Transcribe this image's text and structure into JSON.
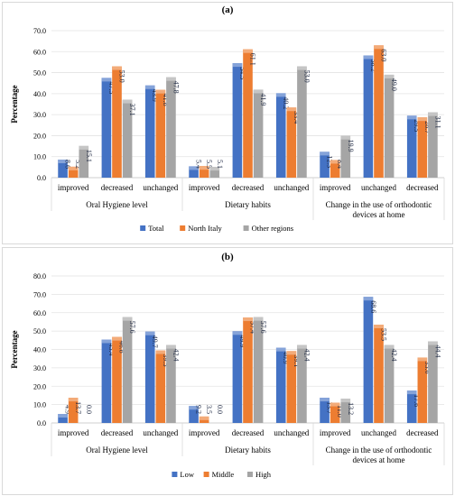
{
  "chart_data": [
    {
      "panel": "(a)",
      "type": "bar",
      "ylabel": "Percentage",
      "ylim": [
        0,
        70
      ],
      "yticks": [
        "0.0",
        "10.0",
        "20.0",
        "30.0",
        "40.0",
        "50.0",
        "60.0",
        "70.0"
      ],
      "grid": true,
      "legend": "bottom",
      "categories": [
        "improved",
        "decreased",
        "unchanged",
        "improved",
        "decreased",
        "unchanged",
        "improved",
        "unchanged",
        "decreased"
      ],
      "groups": [
        {
          "label": "Oral Hygiene level",
          "lines": [
            "Oral Hygiene level"
          ],
          "span": [
            0,
            2
          ]
        },
        {
          "label": "Dietary habits",
          "lines": [
            "Dietary habits"
          ],
          "span": [
            3,
            5
          ]
        },
        {
          "label": "Change in the use of orthodontic devices at home",
          "lines": [
            "Change in the use of orthodontic",
            "devices at home"
          ],
          "span": [
            6,
            8
          ]
        }
      ],
      "series": [
        {
          "name": "Total",
          "color": "#4472c4",
          "values": [
            8.6,
            47.5,
            43.9,
            5.4,
            54.5,
            40.2,
            12.3,
            58.2,
            29.5
          ],
          "labels": [
            "8.6",
            "47.5",
            "43.9",
            "5.4",
            "54.5",
            "40.2",
            "12.3",
            "58.2",
            "29.5"
          ]
        },
        {
          "name": "North Italy",
          "color": "#ed7d31",
          "values": [
            5.2,
            53.0,
            41.8,
            5.5,
            61.1,
            33.4,
            8.4,
            63.0,
            28.7
          ],
          "labels": [
            "5.2",
            "53.0",
            "41.8",
            "5.5",
            "61.1",
            "33.4",
            "8.4",
            "63.0",
            "28.7"
          ]
        },
        {
          "name": "Other regions",
          "color": "#a5a5a5",
          "values": [
            15.1,
            37.1,
            47.8,
            5.1,
            41.9,
            53.0,
            19.9,
            49.0,
            31.1
          ],
          "labels": [
            "15.1",
            "37.1",
            "47.8",
            "5.1",
            "41.9",
            "53.0",
            "19.9",
            "49.0",
            "31.1"
          ]
        }
      ]
    },
    {
      "panel": "(b)",
      "type": "bar",
      "ylabel": "Percentage",
      "ylim": [
        0,
        80
      ],
      "yticks": [
        "0.0",
        "10.0",
        "20.0",
        "30.0",
        "40.0",
        "50.0",
        "60.0",
        "70.0",
        "80.0"
      ],
      "grid": true,
      "legend": "bottom",
      "categories": [
        "improved",
        "decreased",
        "unchanged",
        "improved",
        "decreased",
        "unchanged",
        "improved",
        "unchanged",
        "decreased"
      ],
      "groups": [
        {
          "label": "Oral Hygiene level",
          "lines": [
            "Oral Hygiene level"
          ],
          "span": [
            0,
            2
          ]
        },
        {
          "label": "Dietary habits",
          "lines": [
            "Dietary habits"
          ],
          "span": [
            3,
            5
          ]
        },
        {
          "label": "Change in the use of orthodontic devices at home",
          "lines": [
            "Change in the use of orthodontic",
            "devices at home"
          ],
          "span": [
            6,
            8
          ]
        }
      ],
      "series": [
        {
          "name": "Low",
          "color": "#4472c4",
          "values": [
            4.9,
            45.4,
            49.7,
            9.2,
            49.9,
            40.9,
            13.7,
            68.6,
            17.6
          ],
          "labels": [
            "4.9",
            "45.4",
            "49.7",
            "9.2",
            "49.9",
            "40.9",
            "13.7",
            "68.6",
            "17.6"
          ]
        },
        {
          "name": "Middle",
          "color": "#ed7d31",
          "values": [
            13.7,
            46.8,
            39.5,
            3.5,
            57.4,
            39.1,
            11.0,
            53.5,
            35.6
          ],
          "labels": [
            "13.7",
            "46.8",
            "39.5",
            "3.5",
            "57.4",
            "39.1",
            "11.0",
            "53.5",
            "35.6"
          ]
        },
        {
          "name": "High",
          "color": "#a5a5a5",
          "values": [
            0.0,
            57.6,
            42.4,
            0.0,
            57.6,
            42.4,
            13.2,
            42.4,
            44.4
          ],
          "labels": [
            "0.0",
            "57.6",
            "42.4",
            "0.0",
            "57.6",
            "42.4",
            "13.2",
            "42.4",
            "44.4"
          ]
        }
      ]
    }
  ]
}
